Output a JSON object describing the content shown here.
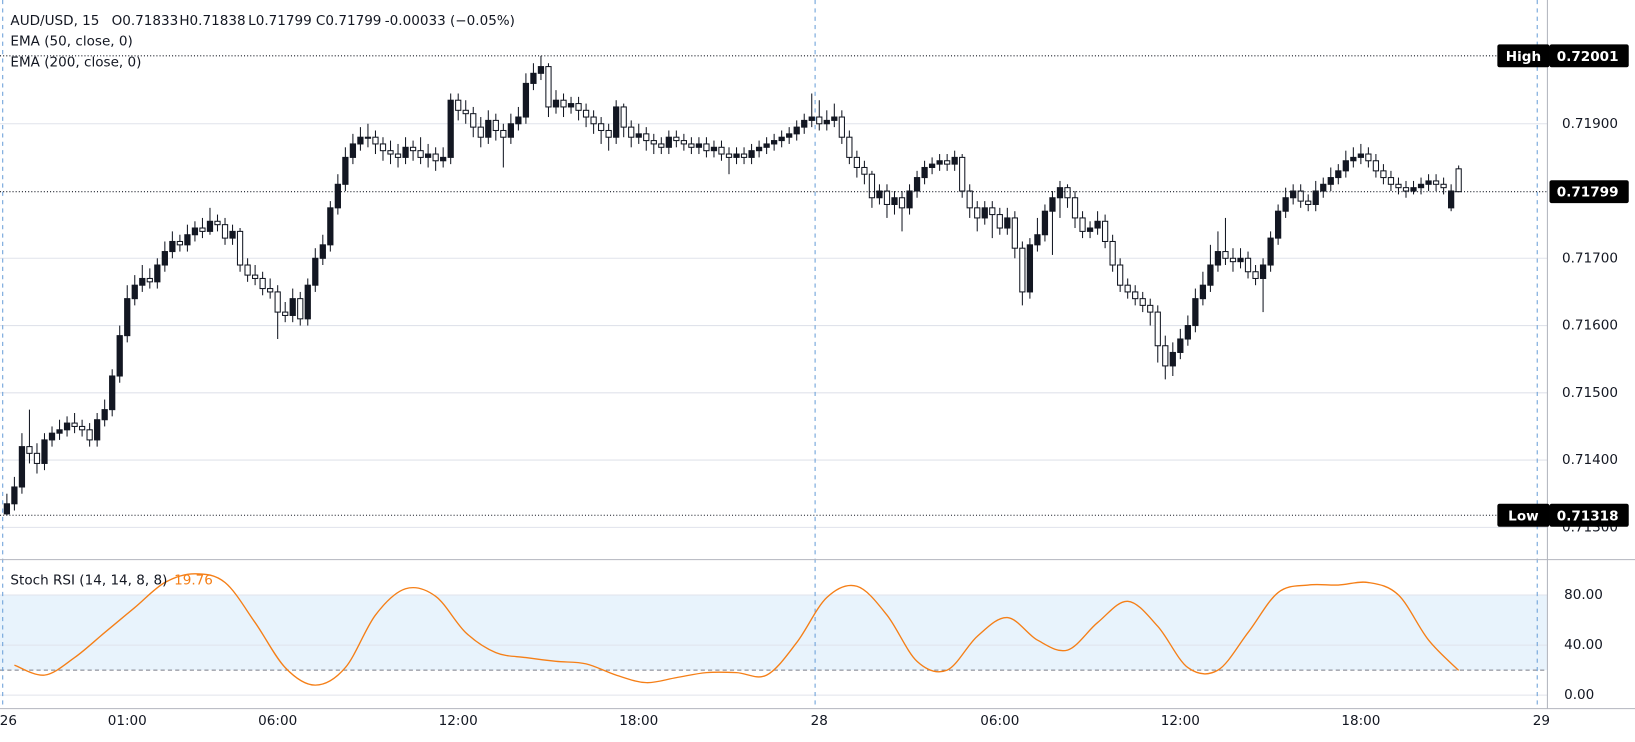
{
  "chart_data": [
    {
      "type": "candlestick",
      "title": "AUD/USD, 15",
      "ohlc_readout": [
        "O0.71833",
        "H0.71838",
        "L0.71799",
        "C0.71799",
        "-0.00033 (−0.05%)"
      ],
      "indicators": [
        "EMA (50, close, 0)",
        "EMA (200, close, 0)"
      ],
      "color_up": "#131722",
      "color_down": "#ffffff",
      "grid": true,
      "xlim": [
        -0.915,
        204.8
      ],
      "xticks": [
        {
          "value": 0,
          "label": "26"
        },
        {
          "value": 16,
          "label": "01:00"
        },
        {
          "value": 36,
          "label": "06:00"
        },
        {
          "value": 60,
          "label": "12:00"
        },
        {
          "value": 84,
          "label": "18:00"
        },
        {
          "value": 108,
          "label": "28"
        },
        {
          "value": 132,
          "label": "06:00"
        },
        {
          "value": 156,
          "label": "12:00"
        },
        {
          "value": 180,
          "label": "18:00"
        },
        {
          "value": 204,
          "label": "29"
        }
      ],
      "ylim": [
        0.71252,
        0.72084
      ],
      "yticks": [
        {
          "value": 0.713,
          "label": "0.71300"
        },
        {
          "value": 0.714,
          "label": "0.71400"
        },
        {
          "value": 0.715,
          "label": "0.71500"
        },
        {
          "value": 0.716,
          "label": "0.71600"
        },
        {
          "value": 0.717,
          "label": "0.71700"
        },
        {
          "value": 0.719,
          "label": "0.71900"
        }
      ],
      "price_lines": [
        {
          "label": "High",
          "value": 0.72001
        },
        {
          "value": 0.71799
        },
        {
          "label": "Low",
          "value": 0.71318
        }
      ],
      "open": [
        0.7132,
        0.71335,
        0.7136,
        0.7142,
        0.7141,
        0.71395,
        0.7143,
        0.7144,
        0.71445,
        0.71455,
        0.7145,
        0.71445,
        0.7143,
        0.7146,
        0.71475,
        0.71525,
        0.71585,
        0.7164,
        0.7166,
        0.7167,
        0.71665,
        0.7169,
        0.7171,
        0.71725,
        0.7172,
        0.71735,
        0.71745,
        0.7174,
        0.71755,
        0.7175,
        0.7173,
        0.7174,
        0.7169,
        0.71675,
        0.7167,
        0.71655,
        0.7165,
        0.7162,
        0.71615,
        0.7164,
        0.7161,
        0.7166,
        0.717,
        0.7172,
        0.71775,
        0.7181,
        0.7185,
        0.7187,
        0.7188,
        0.7188,
        0.7187,
        0.7186,
        0.71855,
        0.7185,
        0.71865,
        0.7186,
        0.7185,
        0.71855,
        0.71845,
        0.7185,
        0.71935,
        0.7192,
        0.71915,
        0.71895,
        0.7188,
        0.71905,
        0.7189,
        0.7188,
        0.719,
        0.7191,
        0.7196,
        0.71975,
        0.71985,
        0.71925,
        0.71935,
        0.71925,
        0.7193,
        0.7192,
        0.7191,
        0.719,
        0.7189,
        0.7188,
        0.71925,
        0.71895,
        0.7188,
        0.71885,
        0.71875,
        0.7187,
        0.71865,
        0.7188,
        0.71875,
        0.7187,
        0.71865,
        0.7187,
        0.7186,
        0.71865,
        0.71855,
        0.7185,
        0.71855,
        0.7185,
        0.7186,
        0.71865,
        0.7187,
        0.71875,
        0.7188,
        0.71885,
        0.71895,
        0.71905,
        0.7191,
        0.719,
        0.71905,
        0.7191,
        0.7188,
        0.7185,
        0.71835,
        0.71825,
        0.7179,
        0.718,
        0.7178,
        0.7179,
        0.71775,
        0.718,
        0.7182,
        0.71835,
        0.7184,
        0.71845,
        0.7184,
        0.7185,
        0.718,
        0.71775,
        0.7176,
        0.71775,
        0.71765,
        0.71745,
        0.7176,
        0.71715,
        0.7165,
        0.7172,
        0.71735,
        0.7177,
        0.7179,
        0.71805,
        0.7179,
        0.7176,
        0.7174,
        0.71745,
        0.71755,
        0.71725,
        0.7169,
        0.7166,
        0.7165,
        0.7164,
        0.7163,
        0.7162,
        0.7157,
        0.7154,
        0.7156,
        0.7158,
        0.716,
        0.7164,
        0.7166,
        0.7169,
        0.7171,
        0.717,
        0.71695,
        0.717,
        0.7168,
        0.7167,
        0.7169,
        0.7173,
        0.7177,
        0.7179,
        0.718,
        0.71785,
        0.7178,
        0.718,
        0.7181,
        0.7182,
        0.7183,
        0.71845,
        0.7185,
        0.71855,
        0.71845,
        0.7183,
        0.7182,
        0.7181,
        0.71805,
        0.718,
        0.71805,
        0.7181,
        0.71815,
        0.7181,
        0.71775,
        0.71833
      ],
      "high": [
        0.7135,
        0.71375,
        0.7144,
        0.71475,
        0.71425,
        0.7144,
        0.7145,
        0.7146,
        0.71465,
        0.7147,
        0.7146,
        0.71455,
        0.7147,
        0.7149,
        0.71535,
        0.716,
        0.7166,
        0.71675,
        0.7169,
        0.71685,
        0.717,
        0.71725,
        0.7174,
        0.71735,
        0.7175,
        0.71755,
        0.7176,
        0.71775,
        0.71765,
        0.7176,
        0.7175,
        0.71745,
        0.717,
        0.7169,
        0.7168,
        0.7167,
        0.7166,
        0.71635,
        0.71655,
        0.7165,
        0.7167,
        0.71715,
        0.71735,
        0.71785,
        0.71825,
        0.71865,
        0.71885,
        0.71895,
        0.719,
        0.7189,
        0.7188,
        0.71875,
        0.7187,
        0.7188,
        0.71875,
        0.7188,
        0.7187,
        0.71865,
        0.71865,
        0.71945,
        0.71945,
        0.71935,
        0.71925,
        0.7191,
        0.7192,
        0.71915,
        0.719,
        0.71915,
        0.71925,
        0.71975,
        0.7199,
        0.72001,
        0.7199,
        0.7195,
        0.71945,
        0.7194,
        0.7194,
        0.7193,
        0.7192,
        0.7191,
        0.719,
        0.71935,
        0.7193,
        0.71905,
        0.719,
        0.71895,
        0.71885,
        0.7188,
        0.7189,
        0.7189,
        0.71885,
        0.7188,
        0.7188,
        0.7188,
        0.71875,
        0.71875,
        0.71865,
        0.71865,
        0.71865,
        0.7187,
        0.71875,
        0.7188,
        0.71885,
        0.7189,
        0.71895,
        0.71905,
        0.71915,
        0.71945,
        0.71935,
        0.7192,
        0.7193,
        0.7192,
        0.7189,
        0.7186,
        0.71845,
        0.7183,
        0.7181,
        0.7181,
        0.718,
        0.718,
        0.7181,
        0.7183,
        0.71845,
        0.7185,
        0.71855,
        0.71855,
        0.7186,
        0.71855,
        0.7181,
        0.71785,
        0.71785,
        0.71785,
        0.71775,
        0.71775,
        0.7177,
        0.71725,
        0.7173,
        0.7176,
        0.7178,
        0.718,
        0.71815,
        0.7181,
        0.718,
        0.7177,
        0.71755,
        0.7177,
        0.71765,
        0.71735,
        0.717,
        0.7167,
        0.7166,
        0.7165,
        0.7164,
        0.7163,
        0.71585,
        0.71575,
        0.71595,
        0.71615,
        0.71655,
        0.7168,
        0.7172,
        0.7174,
        0.7176,
        0.71715,
        0.71715,
        0.7171,
        0.7169,
        0.717,
        0.7174,
        0.7178,
        0.71805,
        0.7181,
        0.7181,
        0.71795,
        0.71815,
        0.7182,
        0.71835,
        0.7184,
        0.7186,
        0.71865,
        0.7187,
        0.71865,
        0.71855,
        0.7184,
        0.7183,
        0.7182,
        0.71815,
        0.71815,
        0.7182,
        0.71825,
        0.71825,
        0.7182,
        0.7181,
        0.71838
      ],
      "low": [
        0.71318,
        0.71325,
        0.7135,
        0.71395,
        0.7138,
        0.71385,
        0.7142,
        0.7143,
        0.71435,
        0.7144,
        0.71435,
        0.7142,
        0.7142,
        0.7145,
        0.71465,
        0.71515,
        0.71575,
        0.7163,
        0.7165,
        0.71655,
        0.71655,
        0.7168,
        0.717,
        0.7171,
        0.7171,
        0.71725,
        0.7173,
        0.71735,
        0.7174,
        0.7172,
        0.7172,
        0.7168,
        0.71665,
        0.7166,
        0.71645,
        0.7164,
        0.7158,
        0.71605,
        0.71605,
        0.716,
        0.716,
        0.7165,
        0.7169,
        0.7171,
        0.71765,
        0.718,
        0.7184,
        0.7186,
        0.71865,
        0.71855,
        0.71845,
        0.7184,
        0.71835,
        0.7184,
        0.71845,
        0.7184,
        0.71835,
        0.7183,
        0.71835,
        0.7184,
        0.71905,
        0.719,
        0.7188,
        0.71865,
        0.7187,
        0.71875,
        0.71835,
        0.7187,
        0.7189,
        0.719,
        0.7195,
        0.71965,
        0.7191,
        0.71915,
        0.7191,
        0.71915,
        0.71905,
        0.71895,
        0.71885,
        0.7187,
        0.7186,
        0.7187,
        0.7188,
        0.71865,
        0.7187,
        0.7186,
        0.71855,
        0.71855,
        0.71855,
        0.71865,
        0.7186,
        0.71855,
        0.71855,
        0.7185,
        0.7185,
        0.71845,
        0.71825,
        0.7184,
        0.7184,
        0.7184,
        0.7185,
        0.71855,
        0.7186,
        0.71865,
        0.7187,
        0.71875,
        0.71885,
        0.71895,
        0.7189,
        0.7189,
        0.71895,
        0.7187,
        0.7184,
        0.7182,
        0.7181,
        0.71775,
        0.7178,
        0.7176,
        0.71765,
        0.7174,
        0.71765,
        0.7179,
        0.7181,
        0.71825,
        0.7183,
        0.7183,
        0.7183,
        0.7179,
        0.7176,
        0.7174,
        0.7175,
        0.7173,
        0.71735,
        0.71735,
        0.717,
        0.7163,
        0.7164,
        0.7171,
        0.71725,
        0.71705,
        0.7176,
        0.71775,
        0.71745,
        0.7173,
        0.7173,
        0.71735,
        0.71715,
        0.7168,
        0.7165,
        0.7164,
        0.7163,
        0.7162,
        0.716,
        0.71545,
        0.7152,
        0.71525,
        0.7155,
        0.7157,
        0.7159,
        0.7163,
        0.7165,
        0.7168,
        0.7169,
        0.7168,
        0.71685,
        0.7167,
        0.7166,
        0.7162,
        0.7168,
        0.7172,
        0.7176,
        0.7178,
        0.71775,
        0.7177,
        0.7177,
        0.7179,
        0.718,
        0.7181,
        0.7182,
        0.71835,
        0.7184,
        0.71835,
        0.7182,
        0.7181,
        0.718,
        0.71795,
        0.7179,
        0.71795,
        0.71795,
        0.718,
        0.718,
        0.71795,
        0.7177,
        0.71799
      ],
      "close": [
        0.71335,
        0.7136,
        0.7142,
        0.7141,
        0.71395,
        0.7143,
        0.7144,
        0.71445,
        0.71455,
        0.7145,
        0.71445,
        0.7143,
        0.7146,
        0.71475,
        0.71525,
        0.71585,
        0.7164,
        0.7166,
        0.7167,
        0.71665,
        0.7169,
        0.7171,
        0.71725,
        0.7172,
        0.71735,
        0.71745,
        0.7174,
        0.71755,
        0.7175,
        0.7173,
        0.7174,
        0.7169,
        0.71675,
        0.7167,
        0.71655,
        0.7165,
        0.7162,
        0.71615,
        0.7164,
        0.7161,
        0.7166,
        0.717,
        0.7172,
        0.71775,
        0.7181,
        0.7185,
        0.7187,
        0.7188,
        0.7188,
        0.7187,
        0.7186,
        0.71855,
        0.7185,
        0.71865,
        0.7186,
        0.7185,
        0.71855,
        0.71845,
        0.7185,
        0.71935,
        0.7192,
        0.71915,
        0.71895,
        0.7188,
        0.71905,
        0.7189,
        0.7188,
        0.719,
        0.7191,
        0.7196,
        0.71975,
        0.71985,
        0.71925,
        0.71935,
        0.71925,
        0.7193,
        0.7192,
        0.7191,
        0.719,
        0.7189,
        0.7188,
        0.71925,
        0.71895,
        0.7188,
        0.71885,
        0.71875,
        0.7187,
        0.71865,
        0.7188,
        0.71875,
        0.7187,
        0.71865,
        0.7187,
        0.7186,
        0.71865,
        0.71855,
        0.7185,
        0.71855,
        0.7185,
        0.7186,
        0.71865,
        0.7187,
        0.71875,
        0.7188,
        0.71885,
        0.71895,
        0.71905,
        0.7191,
        0.719,
        0.71905,
        0.7191,
        0.7188,
        0.7185,
        0.71835,
        0.71825,
        0.7179,
        0.718,
        0.7178,
        0.7179,
        0.71775,
        0.718,
        0.7182,
        0.71835,
        0.7184,
        0.71845,
        0.7184,
        0.7185,
        0.718,
        0.71775,
        0.7176,
        0.71775,
        0.71765,
        0.71745,
        0.7176,
        0.71715,
        0.7165,
        0.7172,
        0.71735,
        0.7177,
        0.7179,
        0.71805,
        0.7179,
        0.7176,
        0.7174,
        0.71745,
        0.71755,
        0.71725,
        0.7169,
        0.7166,
        0.7165,
        0.7164,
        0.7163,
        0.7162,
        0.7157,
        0.7154,
        0.7156,
        0.7158,
        0.716,
        0.7164,
        0.7166,
        0.7169,
        0.7171,
        0.717,
        0.71695,
        0.717,
        0.7168,
        0.7167,
        0.7169,
        0.7173,
        0.7177,
        0.7179,
        0.718,
        0.71785,
        0.7178,
        0.718,
        0.7181,
        0.7182,
        0.7183,
        0.71845,
        0.7185,
        0.71855,
        0.71845,
        0.7183,
        0.7182,
        0.7181,
        0.71805,
        0.718,
        0.71805,
        0.7181,
        0.71815,
        0.7181,
        0.71805,
        0.718,
        0.71799
      ]
    },
    {
      "type": "line",
      "name": "Stoch RSI (14, 14, 8, 8)",
      "color": "#f57f17",
      "band": [
        20,
        80
      ],
      "band_color": "#e8f3fc",
      "ylim": [
        -10.8,
        105.8
      ],
      "yticks": [
        {
          "value": 0,
          "label": "0.00"
        },
        {
          "value": 40,
          "label": "40.00"
        },
        {
          "value": 80,
          "label": "80.00"
        }
      ],
      "x": [
        1,
        5,
        9,
        13,
        17,
        21,
        25,
        29,
        33,
        37,
        41,
        45,
        49,
        53,
        57,
        61,
        65,
        69,
        73,
        77,
        81,
        85,
        89,
        93,
        97,
        101,
        105,
        109,
        113,
        117,
        121,
        125,
        129,
        133,
        137,
        141,
        145,
        149,
        153,
        157,
        161,
        165,
        169,
        173,
        177,
        181,
        185,
        189,
        193
      ],
      "values": [
        24,
        16,
        30,
        50,
        70,
        90,
        97,
        90,
        58,
        22,
        8,
        22,
        64,
        85,
        79,
        50,
        34,
        30,
        27,
        25,
        16,
        10,
        14,
        18,
        18,
        16,
        42,
        78,
        87,
        64,
        27,
        20,
        47,
        62,
        44,
        36,
        58,
        75,
        55,
        22,
        20,
        50,
        82,
        88,
        88,
        90,
        80,
        44,
        19.76
      ]
    }
  ]
}
